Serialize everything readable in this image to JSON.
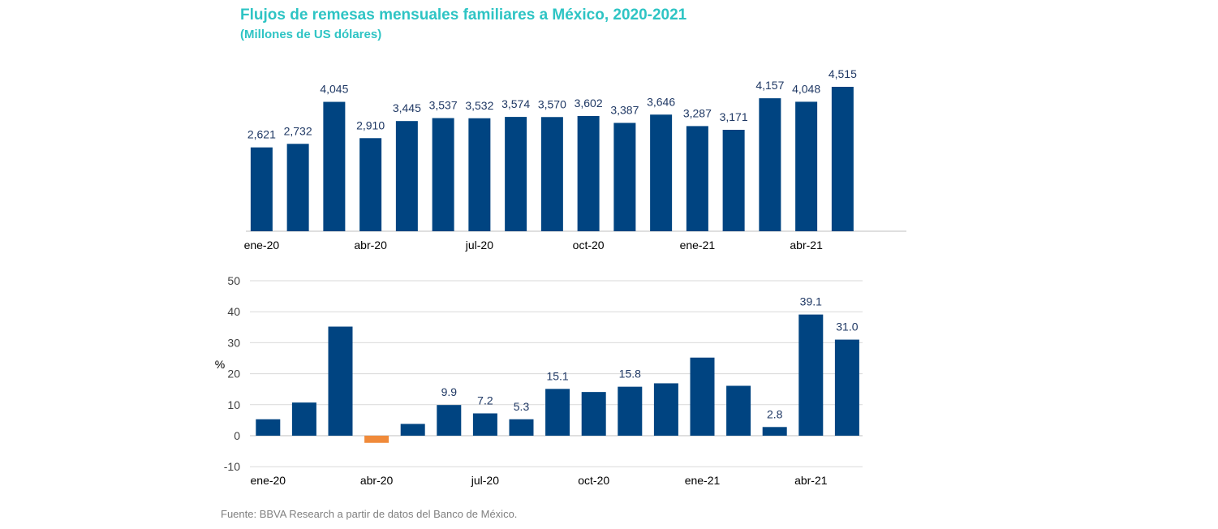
{
  "header": {
    "title": "Flujos de remesas mensuales familiares a México, 2020-2021",
    "subtitle": "(Millones de US dólares)"
  },
  "footer": {
    "source": "Fuente: BBVA Research a partir de datos del Banco de México."
  },
  "colors": {
    "bar": "#004481",
    "negative": "#f08a3a",
    "label": "#1f3864",
    "axis_text": "#000000",
    "grid": "#d9d9d9",
    "accent": "#2ec4c4"
  },
  "chart_data": [
    {
      "type": "bar",
      "title": "Flujos de remesas mensuales familiares a México, 2020-2021",
      "subtitle": "(Millones de US dólares)",
      "xlabel": "",
      "ylabel": "",
      "categories": [
        "ene-20",
        "feb-20",
        "mar-20",
        "abr-20",
        "may-20",
        "jun-20",
        "jul-20",
        "ago-20",
        "sep-20",
        "oct-20",
        "nov-20",
        "dic-20",
        "ene-21",
        "feb-21",
        "mar-21",
        "abr-21",
        "may-21"
      ],
      "tick_labels": [
        "ene-20",
        "abr-20",
        "jul-20",
        "oct-20",
        "ene-21",
        "abr-21"
      ],
      "values": [
        2621,
        2732,
        4045,
        2910,
        3445,
        3537,
        3532,
        3574,
        3570,
        3602,
        3387,
        3646,
        3287,
        3171,
        4157,
        4048,
        4515
      ],
      "data_labels": [
        "2,621",
        "2,732",
        "4,045",
        "2,910",
        "3,445",
        "3,537",
        "3,532",
        "3,574",
        "3,570",
        "3,602",
        "3,387",
        "3,646",
        "3,287",
        "3,171",
        "4,157",
        "4,048",
        "4,515"
      ],
      "ylim": [
        0,
        5000
      ],
      "grid": false,
      "legend": "none"
    },
    {
      "type": "bar",
      "title": "",
      "xlabel": "",
      "ylabel": "%",
      "categories": [
        "ene-20",
        "feb-20",
        "mar-20",
        "abr-20",
        "may-20",
        "jun-20",
        "jul-20",
        "ago-20",
        "sep-20",
        "oct-20",
        "nov-20",
        "dic-20",
        "ene-21",
        "feb-21",
        "mar-21",
        "abr-21",
        "may-21"
      ],
      "tick_labels": [
        "ene-20",
        "abr-20",
        "jul-20",
        "oct-20",
        "ene-21",
        "abr-21"
      ],
      "values": [
        5.3,
        10.7,
        35.2,
        -2.3,
        3.8,
        9.9,
        7.2,
        5.3,
        15.1,
        14.1,
        15.8,
        16.9,
        25.2,
        16.1,
        2.8,
        39.1,
        31.0
      ],
      "data_labels": [
        "",
        "",
        "",
        "",
        "",
        "9.9",
        "7.2",
        "5.3",
        "15.1",
        "",
        "15.8",
        "",
        "",
        "",
        "2.8",
        "39.1",
        "31.0"
      ],
      "yticks": [
        "50",
        "40",
        "30",
        "20",
        "10",
        "0",
        "-10"
      ],
      "ylim": [
        -10,
        50
      ],
      "grid": true,
      "legend": "none"
    }
  ]
}
